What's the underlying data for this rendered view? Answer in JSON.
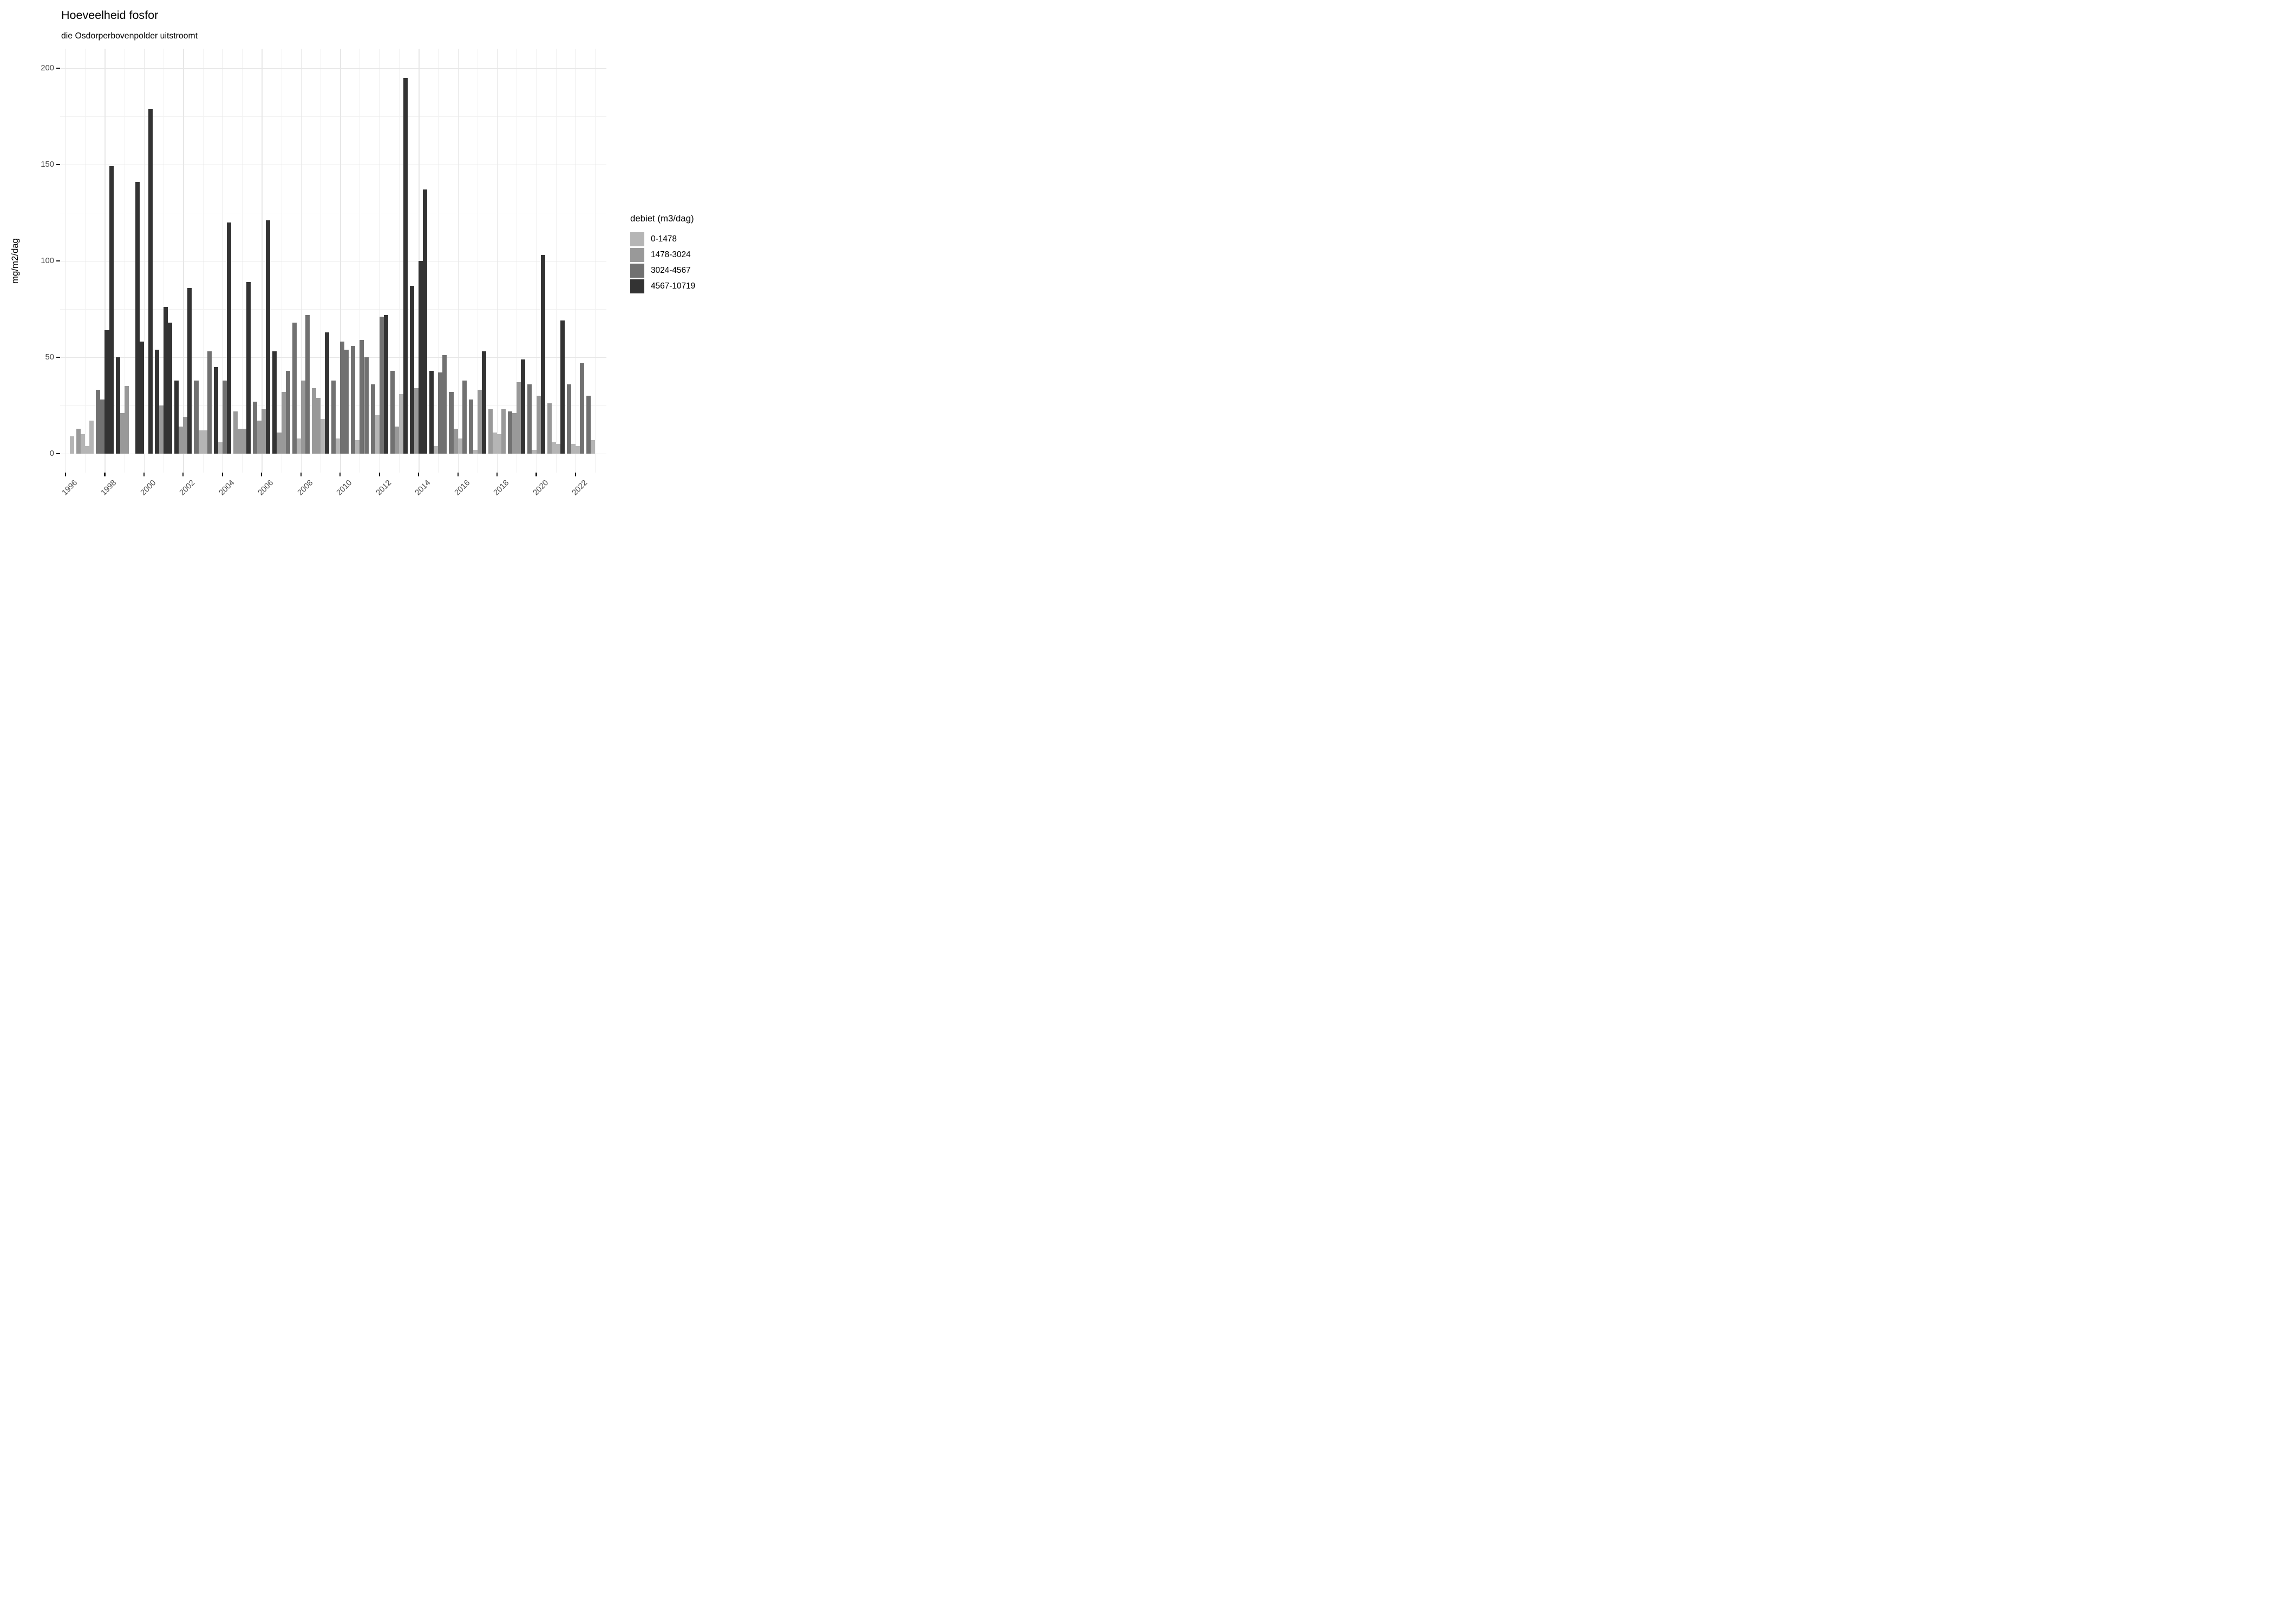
{
  "chart_data": {
    "type": "bar",
    "title": "Hoeveelheid fosfor",
    "subtitle": "die Osdorperbovenpolder uitstroomt",
    "ylabel": "mg/m2/dag",
    "xlabel": "",
    "legend_title": "debiet (m3/dag)",
    "legend_position": "right",
    "grid": "major and minor, light gray on white",
    "ylim": [
      0,
      200
    ],
    "y_ticks": [
      0,
      50,
      100,
      150,
      200
    ],
    "y_minor_ticks": [
      25,
      75,
      125,
      175
    ],
    "x_ticks": [
      1996,
      1998,
      2000,
      2002,
      2004,
      2006,
      2008,
      2010,
      2012,
      2014,
      2016,
      2018,
      2020,
      2022
    ],
    "x_minor_years": [
      1997,
      1999,
      2001,
      2003,
      2005,
      2007,
      2009,
      2011,
      2013,
      2015,
      2017,
      2019,
      2021,
      2023
    ],
    "categories": [
      "0-1478",
      "1478-3024",
      "3024-4567",
      "4567-10719"
    ],
    "category_colors": [
      "#b5b5b5",
      "#999999",
      "#717171",
      "#333333"
    ],
    "bar_key": [
      "year",
      "quarter",
      "value_mg_m2_dag",
      "category_index"
    ],
    "bars": [
      [
        1996,
        4,
        9,
        0
      ],
      [
        1997,
        1,
        13,
        1
      ],
      [
        1997,
        2,
        10,
        0
      ],
      [
        1997,
        3,
        4,
        0
      ],
      [
        1997,
        4,
        17,
        0
      ],
      [
        1998,
        1,
        33,
        2
      ],
      [
        1998,
        2,
        28,
        2
      ],
      [
        1998,
        3,
        64,
        3
      ],
      [
        1998,
        4,
        149,
        3
      ],
      [
        1999,
        1,
        50,
        3
      ],
      [
        1999,
        2,
        21,
        1
      ],
      [
        1999,
        3,
        35,
        1
      ],
      [
        2000,
        1,
        141,
        3
      ],
      [
        2000,
        2,
        58,
        3
      ],
      [
        2000,
        4,
        179,
        3
      ],
      [
        2001,
        1,
        54,
        3
      ],
      [
        2001,
        2,
        25,
        1
      ],
      [
        2001,
        3,
        76,
        3
      ],
      [
        2001,
        4,
        68,
        3
      ],
      [
        2002,
        1,
        38,
        3
      ],
      [
        2002,
        2,
        14,
        1
      ],
      [
        2002,
        3,
        19,
        1
      ],
      [
        2002,
        4,
        86,
        3
      ],
      [
        2003,
        1,
        38,
        2
      ],
      [
        2003,
        2,
        12,
        0
      ],
      [
        2003,
        3,
        12,
        0
      ],
      [
        2003,
        4,
        53,
        2
      ],
      [
        2004,
        1,
        45,
        3
      ],
      [
        2004,
        2,
        6,
        0
      ],
      [
        2004,
        3,
        38,
        2
      ],
      [
        2004,
        4,
        120,
        3
      ],
      [
        2005,
        1,
        22,
        1
      ],
      [
        2005,
        2,
        13,
        1
      ],
      [
        2005,
        3,
        13,
        1
      ],
      [
        2005,
        4,
        89,
        3
      ],
      [
        2006,
        1,
        27,
        2
      ],
      [
        2006,
        2,
        17,
        1
      ],
      [
        2006,
        3,
        23,
        1
      ],
      [
        2006,
        4,
        121,
        3
      ],
      [
        2007,
        1,
        53,
        3
      ],
      [
        2007,
        2,
        11,
        1
      ],
      [
        2007,
        3,
        32,
        1
      ],
      [
        2007,
        4,
        43,
        2
      ],
      [
        2008,
        1,
        68,
        2
      ],
      [
        2008,
        2,
        8,
        0
      ],
      [
        2008,
        3,
        38,
        1
      ],
      [
        2008,
        4,
        72,
        2
      ],
      [
        2009,
        1,
        34,
        1
      ],
      [
        2009,
        2,
        29,
        1
      ],
      [
        2009,
        3,
        18,
        0
      ],
      [
        2009,
        4,
        63,
        3
      ],
      [
        2010,
        1,
        38,
        2
      ],
      [
        2010,
        2,
        8,
        0
      ],
      [
        2010,
        3,
        58,
        2
      ],
      [
        2010,
        4,
        54,
        2
      ],
      [
        2011,
        1,
        56,
        2
      ],
      [
        2011,
        2,
        7,
        0
      ],
      [
        2011,
        3,
        59,
        2
      ],
      [
        2011,
        4,
        50,
        2
      ],
      [
        2012,
        1,
        36,
        2
      ],
      [
        2012,
        2,
        20,
        0
      ],
      [
        2012,
        3,
        71,
        2
      ],
      [
        2012,
        4,
        72,
        3
      ],
      [
        2013,
        1,
        43,
        2
      ],
      [
        2013,
        2,
        14,
        1
      ],
      [
        2013,
        3,
        31,
        0
      ],
      [
        2013,
        4,
        195,
        3
      ],
      [
        2014,
        1,
        87,
        3
      ],
      [
        2014,
        2,
        34,
        1
      ],
      [
        2014,
        3,
        100,
        3
      ],
      [
        2014,
        4,
        137,
        3
      ],
      [
        2015,
        1,
        43,
        3
      ],
      [
        2015,
        2,
        4,
        0
      ],
      [
        2015,
        3,
        42,
        2
      ],
      [
        2015,
        4,
        51,
        2
      ],
      [
        2016,
        1,
        32,
        2
      ],
      [
        2016,
        2,
        13,
        1
      ],
      [
        2016,
        3,
        8,
        0
      ],
      [
        2016,
        4,
        38,
        2
      ],
      [
        2017,
        1,
        28,
        2
      ],
      [
        2017,
        2,
        2,
        0
      ],
      [
        2017,
        3,
        33,
        1
      ],
      [
        2017,
        4,
        53,
        3
      ],
      [
        2018,
        1,
        23,
        1
      ],
      [
        2018,
        2,
        11,
        0
      ],
      [
        2018,
        3,
        10,
        0
      ],
      [
        2018,
        4,
        23,
        1
      ],
      [
        2019,
        1,
        22,
        2
      ],
      [
        2019,
        2,
        21,
        1
      ],
      [
        2019,
        3,
        37,
        1
      ],
      [
        2019,
        4,
        49,
        3
      ],
      [
        2020,
        1,
        36,
        2
      ],
      [
        2020,
        2,
        2,
        0
      ],
      [
        2020,
        3,
        30,
        1
      ],
      [
        2020,
        4,
        103,
        3
      ],
      [
        2021,
        1,
        26,
        1
      ],
      [
        2021,
        2,
        6,
        0
      ],
      [
        2021,
        3,
        5,
        0
      ],
      [
        2021,
        4,
        69,
        3
      ],
      [
        2022,
        1,
        36,
        2
      ],
      [
        2022,
        2,
        5,
        0
      ],
      [
        2022,
        3,
        4,
        0
      ],
      [
        2022,
        4,
        47,
        2
      ],
      [
        2023,
        1,
        30,
        2
      ],
      [
        2023,
        2,
        7,
        0
      ]
    ]
  }
}
